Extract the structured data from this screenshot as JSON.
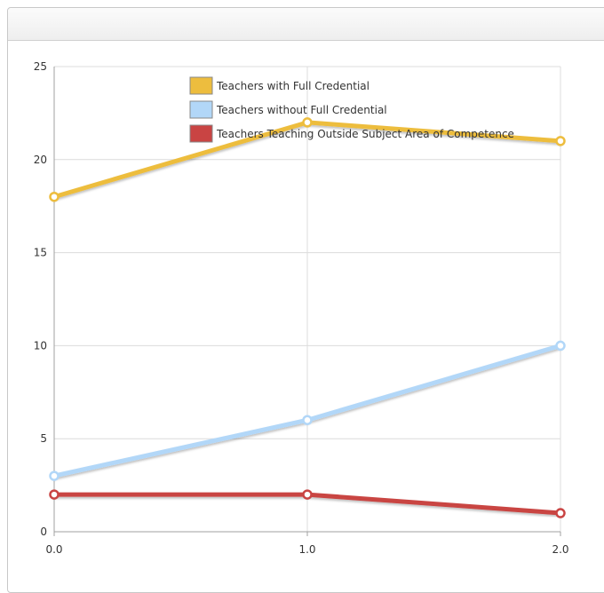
{
  "chart_data": {
    "type": "line",
    "x": [
      0,
      1,
      2
    ],
    "xticks": [
      "0.0",
      "1.0",
      "2.0"
    ],
    "yticks": [
      "0",
      "5",
      "10",
      "15",
      "20",
      "25"
    ],
    "xlim": [
      0,
      2
    ],
    "ylim": [
      0,
      25
    ],
    "grid": true,
    "legend_position": "top-center",
    "series": [
      {
        "name": "Teachers with Full Credential",
        "values": [
          18,
          22,
          21
        ],
        "color": "#EDBD3E"
      },
      {
        "name": "Teachers without Full Credential",
        "values": [
          3,
          6,
          10
        ],
        "color": "#B2D7F8"
      },
      {
        "name": "Teachers Teaching Outside Subject Area of Competence",
        "values": [
          2,
          2,
          1
        ],
        "color": "#C94443"
      }
    ]
  }
}
